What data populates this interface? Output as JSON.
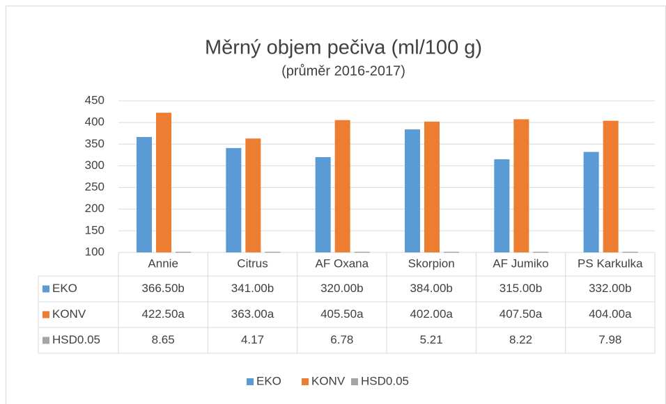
{
  "chart_data": {
    "type": "bar",
    "title": "Měrný objem pečiva (ml/100 g)",
    "subtitle": "(průměr 2016-2017)",
    "categories": [
      "Annie",
      "Citrus",
      "AF Oxana",
      "Skorpion",
      "AF Jumiko",
      "PS Karkulka"
    ],
    "series": [
      {
        "name": "EKO",
        "color": "#5b9bd5",
        "values": [
          366.5,
          341,
          320,
          384,
          315,
          332
        ],
        "value_labels": [
          "366.50b",
          "341.00b",
          "320.00b",
          "384.00b",
          "315.00b",
          "332.00b"
        ]
      },
      {
        "name": "KONV",
        "color": "#ed7d31",
        "values": [
          422.5,
          363,
          405.5,
          402,
          407.5,
          404
        ],
        "value_labels": [
          "422.50a",
          "363.00a",
          "405.50a",
          "402.00a",
          "407.50a",
          "404.00a"
        ]
      },
      {
        "name": "HSD0.05",
        "color": "#a5a5a5",
        "values": [
          8.65,
          4.17,
          6.78,
          5.21,
          8.22,
          7.98
        ]
      }
    ],
    "ylim": [
      100,
      450
    ],
    "yticks": [
      100,
      150,
      200,
      250,
      300,
      350,
      400,
      450
    ],
    "grid": true,
    "legend": "bottom"
  }
}
